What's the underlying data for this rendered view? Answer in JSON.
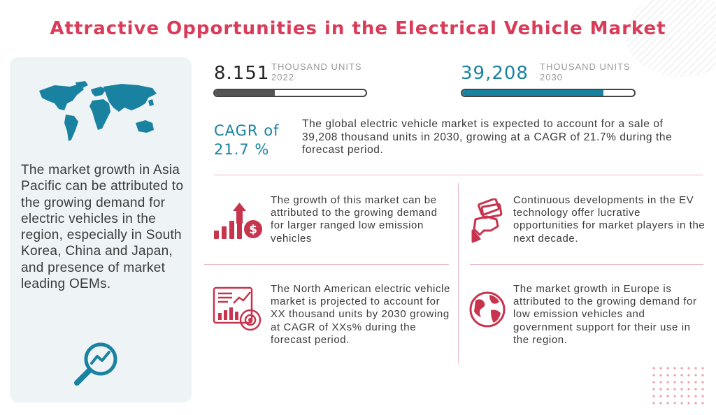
{
  "title": "Attractive Opportunities in the Electrical Vehicle Market",
  "colors": {
    "accent": "#d93b58",
    "teal": "#1a82a1",
    "dark_bar": "#555555"
  },
  "left_panel": {
    "text": "The market growth in Asia Pacific can be attributed to the growing demand for electric vehicles in the region, especially in South Korea, China and Japan, and presence of market leading OEMs.",
    "icons": [
      "world-map-icon",
      "magnifier-chart-icon"
    ]
  },
  "stats": [
    {
      "value": "8.151",
      "unit": "THOUSAND UNITS",
      "year": "2022",
      "fill": 0.4
    },
    {
      "value": "39,208",
      "unit": "THOUSAND UNITS",
      "year": "2030",
      "fill": 0.82
    }
  ],
  "cagr": {
    "label": "CAGR of",
    "value": "21.7 %",
    "description": "The global electric vehicle market is expected to account for a sale of 39,208 thousand units in 2030, growing at a CAGR of 21.7% during the forecast period."
  },
  "cards": [
    {
      "text": "The growth of this market can be attributed to the growing demand for larger ranged low emission vehicles",
      "icon": "growth-chart-dollar-icon"
    },
    {
      "text": "Continuous developments in the EV technology offer lucrative opportunities for market players in the next decade.",
      "icon": "hand-money-icon"
    },
    {
      "text": "The North American electric vehicle market is projected to account for XX thousand units by 2030 growing at CAGR of XXs% during the forecast period.",
      "icon": "dashboard-analytics-icon"
    },
    {
      "text": "The market growth in Europe is attributed to the growing demand for low emission vehicles and government support for their use in the region.",
      "icon": "globe-icon"
    }
  ]
}
